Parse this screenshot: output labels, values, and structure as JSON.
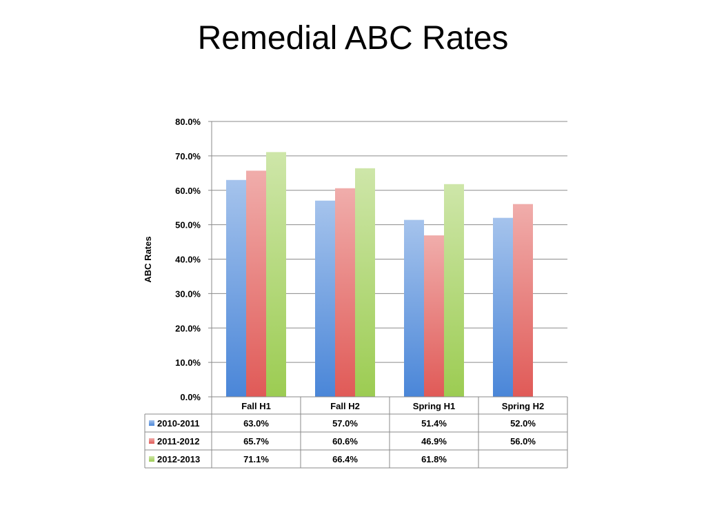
{
  "slide": {
    "title": "Remedial ABC Rates"
  },
  "colors": {
    "2010-2011": "#4a86d8",
    "2011-2012": "#e05a57",
    "2012-2013": "#9ccc52"
  },
  "chart_data": {
    "type": "bar",
    "title": "",
    "xlabel": "",
    "ylabel": "ABC Rates",
    "ylim": [
      0,
      80
    ],
    "yticks": [
      "0.0%",
      "10.0%",
      "20.0%",
      "30.0%",
      "40.0%",
      "50.0%",
      "60.0%",
      "70.0%",
      "80.0%"
    ],
    "grid": true,
    "legend": "data-table",
    "categories": [
      "Fall H1",
      "Fall H2",
      "Spring H1",
      "Spring H2"
    ],
    "series": [
      {
        "name": "2010-2011",
        "values": [
          63.0,
          57.0,
          51.4,
          52.0
        ],
        "labels": [
          "63.0%",
          "57.0%",
          "51.4%",
          "52.0%"
        ]
      },
      {
        "name": "2011-2012",
        "values": [
          65.7,
          60.6,
          46.9,
          56.0
        ],
        "labels": [
          "65.7%",
          "60.6%",
          "46.9%",
          "56.0%"
        ]
      },
      {
        "name": "2012-2013",
        "values": [
          71.1,
          66.4,
          61.8,
          null
        ],
        "labels": [
          "71.1%",
          "66.4%",
          "61.8%",
          ""
        ]
      }
    ]
  }
}
